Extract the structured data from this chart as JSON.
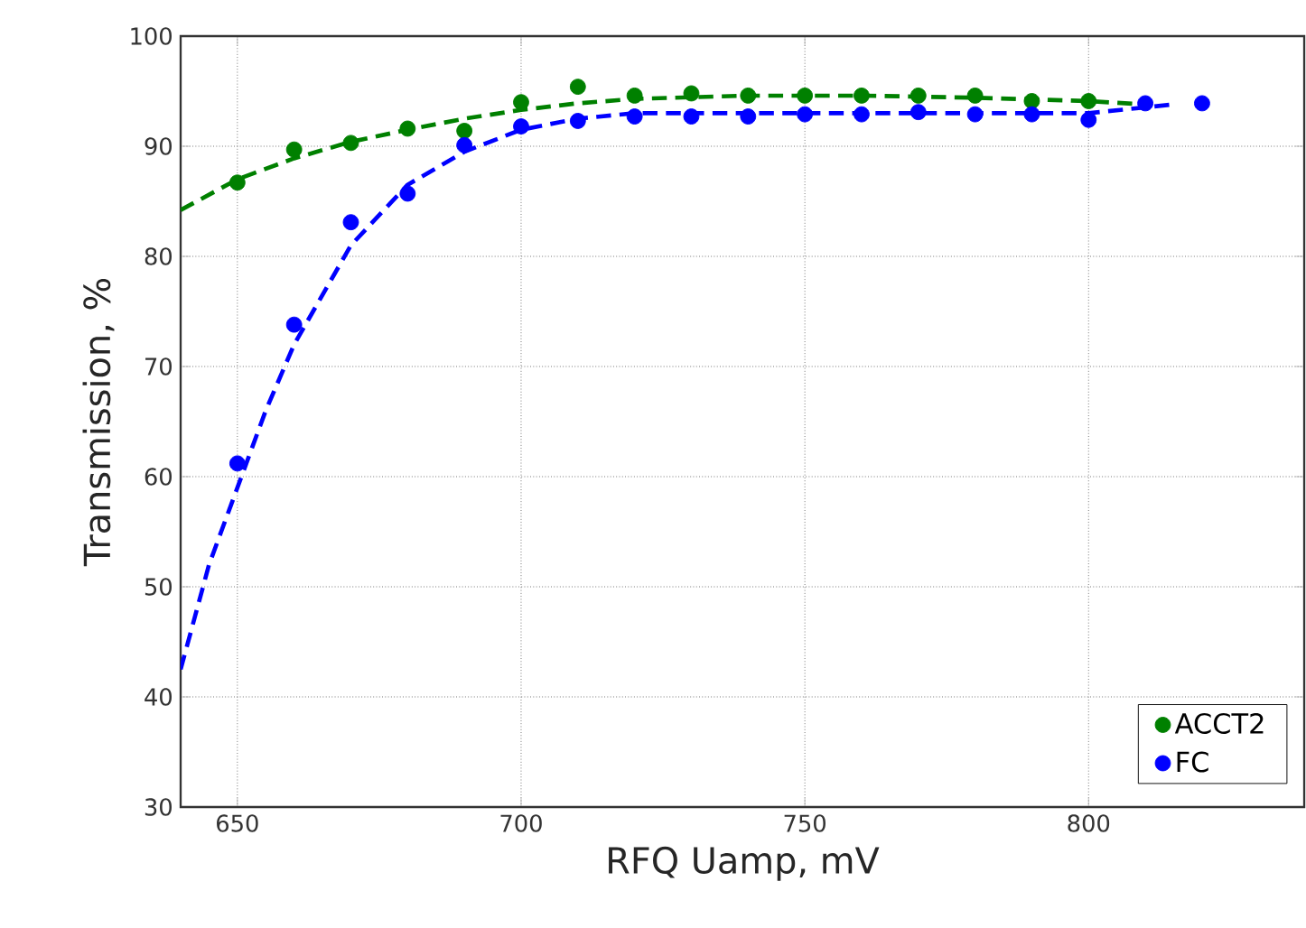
{
  "chart_data": {
    "type": "scatter",
    "xlabel": "RFQ Uamp, mV",
    "ylabel": "Transmission, %",
    "xlim": [
      640,
      838
    ],
    "ylim": [
      30,
      100
    ],
    "xticks": [
      650,
      700,
      750,
      800
    ],
    "yticks": [
      30,
      40,
      50,
      60,
      70,
      80,
      90,
      100
    ],
    "grid": true,
    "legend": "bottom right",
    "series": [
      {
        "name": "ACCT2",
        "marker": "circle",
        "color": "#008000",
        "x": [
          650,
          660,
          670,
          680,
          690,
          700,
          710,
          720,
          730,
          740,
          750,
          760,
          770,
          780,
          790,
          800
        ],
        "values": [
          86.7,
          89.7,
          90.3,
          91.6,
          91.4,
          94.0,
          95.4,
          94.6,
          94.8,
          94.6,
          94.6,
          94.6,
          94.6,
          94.6,
          94.1,
          94.1
        ]
      },
      {
        "name": "FC",
        "marker": "circle",
        "color": "#0000ff",
        "x": [
          650,
          660,
          670,
          680,
          690,
          700,
          710,
          720,
          730,
          740,
          750,
          760,
          770,
          780,
          790,
          800,
          810,
          820
        ],
        "values": [
          61.2,
          73.8,
          83.1,
          85.7,
          90.1,
          91.8,
          92.3,
          92.7,
          92.7,
          92.7,
          92.9,
          92.9,
          93.1,
          92.9,
          92.9,
          92.4,
          93.9,
          93.9
        ]
      },
      {
        "type": "line",
        "line_style": "dashed",
        "marker": "none",
        "color": "#008000",
        "x": [
          640,
          650,
          660,
          670,
          680,
          690,
          700,
          710,
          720,
          740,
          760,
          780,
          800,
          810
        ],
        "values": [
          84.2,
          87.0,
          88.9,
          90.4,
          91.5,
          92.5,
          93.3,
          93.9,
          94.3,
          94.6,
          94.6,
          94.4,
          94.1,
          93.8
        ]
      },
      {
        "type": "line",
        "line_style": "dashed",
        "marker": "none",
        "color": "#0000ff",
        "x": [
          640,
          645,
          650,
          655,
          660,
          670,
          680,
          690,
          700,
          710,
          720,
          750,
          800,
          815
        ],
        "values": [
          42.5,
          52,
          59,
          66,
          72,
          81,
          86.5,
          89.5,
          91.5,
          92.5,
          93,
          93,
          93,
          93.8
        ]
      }
    ]
  }
}
